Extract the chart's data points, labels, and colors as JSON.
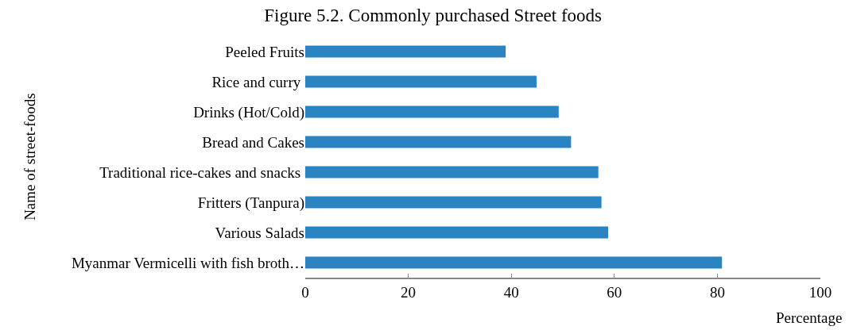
{
  "chart_data": {
    "type": "bar",
    "orientation": "horizontal",
    "title": "Figure 5.2. Commonly purchased Street foods",
    "xlabel": "Percentage",
    "ylabel": "Name of street-foods",
    "categories": [
      "Peeled Fruits",
      "Rice and curry ",
      "Drinks (Hot/Cold)",
      "Bread and Cakes",
      "Traditional rice-cakes and snacks ",
      "Fritters (Tanpura)",
      "Various Salads",
      "Myanmar Vermicelli with fish broth…"
    ],
    "values": [
      38.9,
      44.9,
      49.2,
      51.6,
      56.9,
      57.5,
      58.8,
      80.9
    ],
    "color": "#2a84c2",
    "xlim": [
      0,
      100
    ],
    "xticks": [
      0,
      20,
      40,
      60,
      80,
      100
    ],
    "grid": false
  }
}
